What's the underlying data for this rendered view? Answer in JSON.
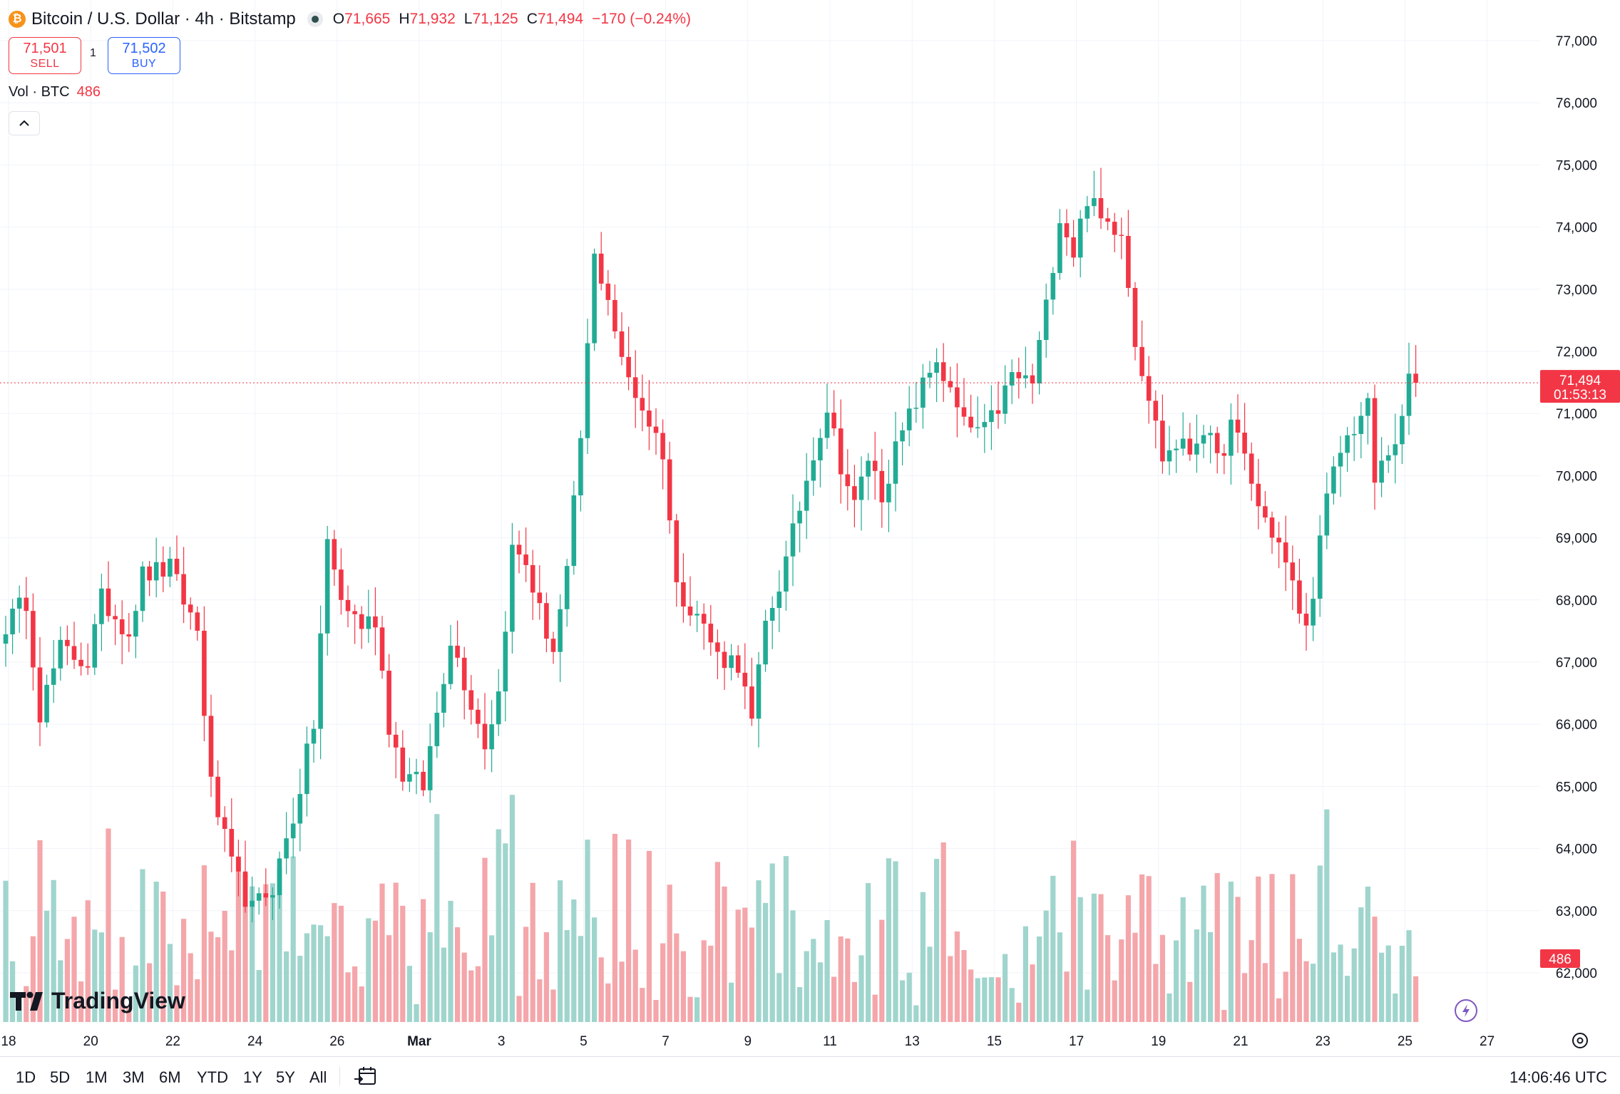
{
  "header": {
    "symbol_title": "Bitcoin / U.S. Dollar · 4h · Bitstamp",
    "coin_glyph": "₿",
    "ohlc": {
      "open_label": "O",
      "open": "71,665",
      "high_label": "H",
      "high": "71,932",
      "low_label": "L",
      "low": "71,125",
      "close_label": "C",
      "close": "71,494",
      "change": "−170 (−0.24%)"
    }
  },
  "trade": {
    "sell_price": "71,501",
    "sell_label": "SELL",
    "spread": "1",
    "buy_price": "71,502",
    "buy_label": "BUY"
  },
  "volume_legend": {
    "label": "Vol · BTC",
    "value": "486"
  },
  "branding": {
    "logo_text": "TradingView"
  },
  "bottom_bar": {
    "timeframes": [
      "1D",
      "5D",
      "1M",
      "3M",
      "6M",
      "YTD",
      "1Y",
      "5Y",
      "All"
    ],
    "clock": "14:06:46 UTC"
  },
  "colors": {
    "up": "#22ab94",
    "down": "#f23645",
    "up_volume": "#9fd5cd",
    "down_volume": "#f4a6aa"
  },
  "chart_data": {
    "type": "candlestick",
    "interval": "4h",
    "y_axis": {
      "ticks": [
        "62,000",
        "63,000",
        "64,000",
        "65,000",
        "66,000",
        "67,000",
        "68,000",
        "69,000",
        "70,000",
        "71,000",
        "72,000",
        "73,000",
        "74,000",
        "75,000",
        "76,000",
        "77,000"
      ],
      "range": [
        61200,
        77400
      ]
    },
    "x_axis": {
      "ticks": [
        "18",
        "20",
        "22",
        "24",
        "26",
        "Mar",
        "3",
        "5",
        "7",
        "9",
        "11",
        "13",
        "15",
        "17",
        "19",
        "21",
        "23",
        "25",
        "27"
      ]
    },
    "last_price": {
      "price": "71,494",
      "countdown": "01:53:13",
      "value": 71494
    },
    "last_volume": {
      "label": "486"
    },
    "trend_points": [
      [
        0,
        67600
      ],
      [
        3,
        68000
      ],
      [
        5,
        66200
      ],
      [
        8,
        67200
      ],
      [
        12,
        67000
      ],
      [
        14,
        68000
      ],
      [
        18,
        67500
      ],
      [
        20,
        68400
      ],
      [
        24,
        68500
      ],
      [
        26,
        68000
      ],
      [
        28,
        67500
      ],
      [
        30,
        65000
      ],
      [
        33,
        63700
      ],
      [
        36,
        63000
      ],
      [
        39,
        63400
      ],
      [
        42,
        64500
      ],
      [
        45,
        66000
      ],
      [
        47,
        68900
      ],
      [
        49,
        68000
      ],
      [
        52,
        67600
      ],
      [
        54,
        67700
      ],
      [
        56,
        66000
      ],
      [
        58,
        65200
      ],
      [
        61,
        65000
      ],
      [
        63,
        66200
      ],
      [
        65,
        67400
      ],
      [
        67,
        66700
      ],
      [
        70,
        65700
      ],
      [
        72,
        66500
      ],
      [
        74,
        68800
      ],
      [
        76,
        68600
      ],
      [
        78,
        67800
      ],
      [
        80,
        67200
      ],
      [
        82,
        68400
      ],
      [
        84,
        70600
      ],
      [
        86,
        73500
      ],
      [
        88,
        72900
      ],
      [
        90,
        71800
      ],
      [
        93,
        71100
      ],
      [
        96,
        70400
      ],
      [
        98,
        68200
      ],
      [
        101,
        67800
      ],
      [
        104,
        67100
      ],
      [
        107,
        67000
      ],
      [
        109,
        66000
      ],
      [
        111,
        67600
      ],
      [
        114,
        68600
      ],
      [
        116,
        69500
      ],
      [
        118,
        70400
      ],
      [
        120,
        71100
      ],
      [
        122,
        70200
      ],
      [
        124,
        69500
      ],
      [
        126,
        70300
      ],
      [
        128,
        69700
      ],
      [
        130,
        70400
      ],
      [
        133,
        71200
      ],
      [
        136,
        71900
      ],
      [
        138,
        71300
      ],
      [
        140,
        70800
      ],
      [
        143,
        70700
      ],
      [
        145,
        71100
      ],
      [
        147,
        71600
      ],
      [
        150,
        71500
      ],
      [
        152,
        72700
      ],
      [
        154,
        74200
      ],
      [
        156,
        73600
      ],
      [
        158,
        74500
      ],
      [
        160,
        74100
      ],
      [
        163,
        74000
      ],
      [
        165,
        72200
      ],
      [
        167,
        71300
      ],
      [
        169,
        70300
      ],
      [
        171,
        70500
      ],
      [
        173,
        70400
      ],
      [
        175,
        70800
      ],
      [
        177,
        70200
      ],
      [
        179,
        70800
      ],
      [
        181,
        70300
      ],
      [
        183,
        69500
      ],
      [
        186,
        68900
      ],
      [
        188,
        68200
      ],
      [
        190,
        67500
      ],
      [
        193,
        69600
      ],
      [
        195,
        70400
      ],
      [
        197,
        70800
      ],
      [
        199,
        71100
      ],
      [
        200,
        69900
      ],
      [
        202,
        70400
      ],
      [
        204,
        70800
      ],
      [
        205,
        71600
      ],
      [
        206,
        71494
      ]
    ]
  }
}
